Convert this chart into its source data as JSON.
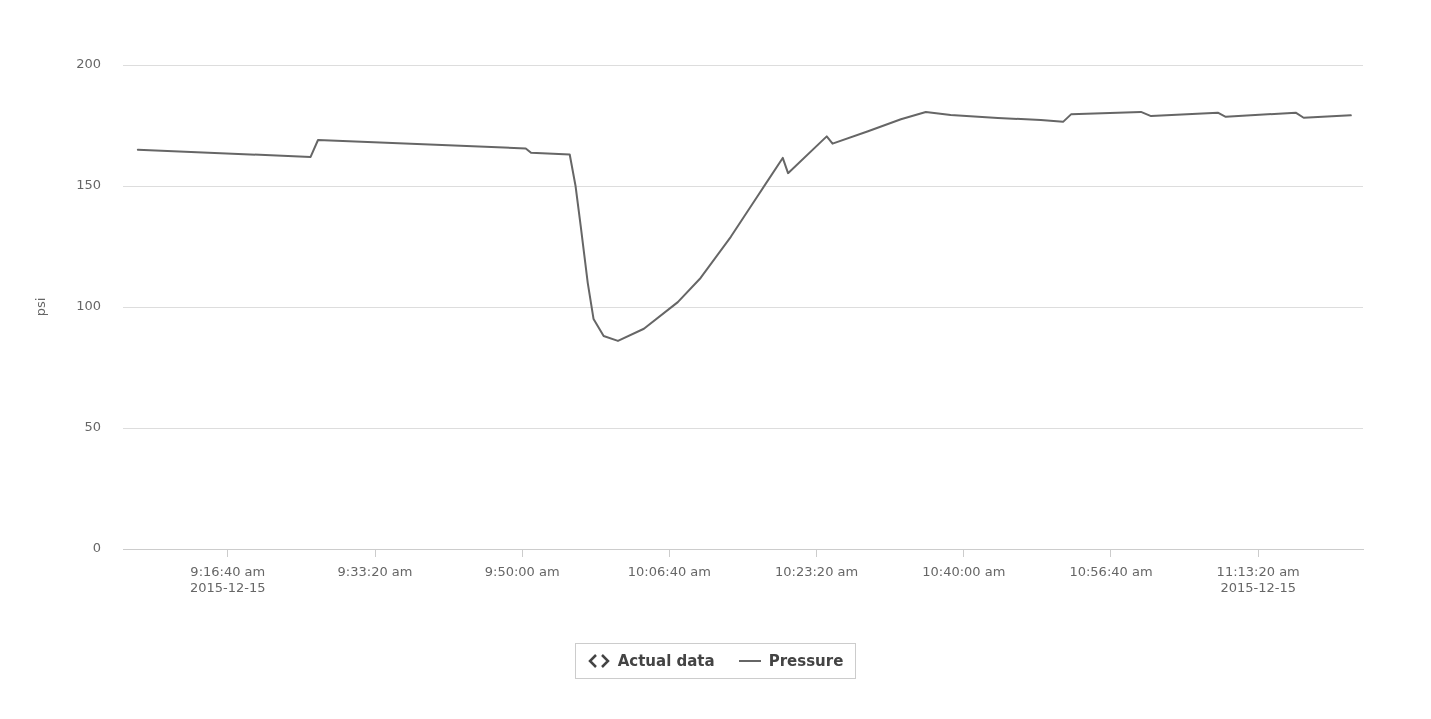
{
  "chart_data": {
    "type": "line",
    "ylabel": "psi",
    "legend": "bottom",
    "grid": "y",
    "marker": "none",
    "line_style": "solid",
    "annotations": [
      "Actual data"
    ],
    "xlim": [
      9.08,
      11.42
    ],
    "xticks": [
      {
        "value": 9.27778,
        "label": "9:16:40 am\n2015-12-15"
      },
      {
        "value": 9.55556,
        "label": "9:33:20 am"
      },
      {
        "value": 9.83333,
        "label": "9:50:00 am"
      },
      {
        "value": 10.11111,
        "label": "10:06:40 am"
      },
      {
        "value": 10.38889,
        "label": "10:23:20 am"
      },
      {
        "value": 10.66667,
        "label": "10:40:00 am"
      },
      {
        "value": 10.94444,
        "label": "10:56:40 am"
      },
      {
        "value": 11.22222,
        "label": "11:13:20 am\n2015-12-15"
      }
    ],
    "ylim": [
      0,
      200
    ],
    "yticks": [
      0,
      50,
      100,
      150,
      200
    ],
    "x": [
      9.108,
      9.434,
      9.448,
      9.84,
      9.85,
      9.923,
      9.934,
      9.944,
      9.957,
      9.968,
      9.987,
      10.014,
      10.063,
      10.127,
      10.17,
      10.227,
      10.278,
      10.325,
      10.335,
      10.408,
      10.419,
      10.486,
      10.548,
      10.595,
      10.642,
      10.731,
      10.812,
      10.854,
      10.869,
      11.001,
      11.02,
      11.146,
      11.161,
      11.293,
      11.308,
      11.397
    ],
    "series": [
      {
        "name": "Pressure",
        "color": "#666666",
        "values": [
          165,
          162,
          169,
          165.5,
          163.7,
          163,
          150,
          133,
          110,
          95,
          88,
          86,
          91,
          102,
          112,
          129,
          146,
          161.6,
          155.3,
          170.5,
          167.5,
          172.6,
          177.6,
          180.6,
          179.3,
          178.1,
          177.3,
          176.5,
          179.6,
          180.6,
          178.9,
          180.3,
          178.6,
          180.3,
          178.2,
          179.2
        ]
      }
    ]
  }
}
